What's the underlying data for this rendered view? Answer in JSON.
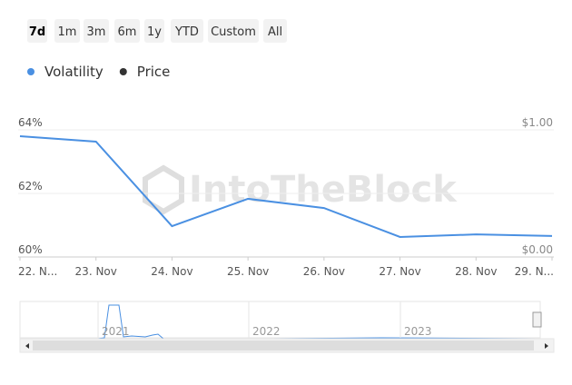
{
  "range_buttons": [
    "7d",
    "1m",
    "3m",
    "6m",
    "1y",
    "YTD",
    "Custom",
    "All"
  ],
  "selected_range": "7d",
  "watermark": "IntoTheBlock",
  "chart_data": {
    "type": "line",
    "categories": [
      "22. N...",
      "23. Nov",
      "24. Nov",
      "25. Nov",
      "26. Nov",
      "27. Nov",
      "28. Nov",
      "29. N..."
    ],
    "series": [
      {
        "name": "Volatility",
        "color": "#4a90e2",
        "values": [
          63.8,
          63.63,
          60.97,
          61.83,
          61.54,
          60.63,
          60.71,
          60.66
        ]
      },
      {
        "name": "Price",
        "color": "#333333",
        "axis": "y2",
        "values": [
          null,
          null,
          null,
          null,
          null,
          null,
          null,
          null
        ]
      }
    ],
    "ylim": [
      60,
      64
    ],
    "yticks": [
      {
        "value": 60,
        "label": "60%"
      },
      {
        "value": 62,
        "label": "62%"
      },
      {
        "value": 64,
        "label": "64%"
      }
    ],
    "y2lim": [
      0,
      1
    ],
    "y2ticks": [
      {
        "value": 0,
        "label": "$0.00"
      },
      {
        "value": 1,
        "label": "$1.00"
      }
    ],
    "grid": true,
    "navigator_labels": [
      "2021",
      "2022",
      "2023"
    ]
  }
}
